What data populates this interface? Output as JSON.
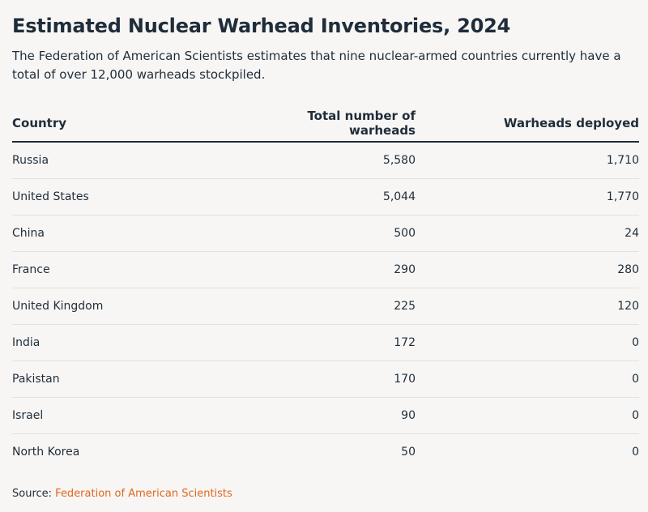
{
  "chart_data": {
    "type": "table",
    "title": "Estimated Nuclear Warhead Inventories, 2024",
    "subtitle": "The Federation of American Scientists estimates that nine nuclear-armed countries currently have a total of over 12,000 warheads stockpiled.",
    "columns": [
      "Country",
      "Total number of warheads",
      "Warheads deployed"
    ],
    "rows": [
      [
        "Russia",
        "5,580",
        "1,710"
      ],
      [
        "United States",
        "5,044",
        "1,770"
      ],
      [
        "China",
        "500",
        "24"
      ],
      [
        "France",
        "290",
        "280"
      ],
      [
        "United Kingdom",
        "225",
        "120"
      ],
      [
        "India",
        "172",
        "0"
      ],
      [
        "Pakistan",
        "170",
        "0"
      ],
      [
        "Israel",
        "90",
        "0"
      ],
      [
        "North Korea",
        "50",
        "0"
      ]
    ]
  },
  "source": {
    "label": "Source:",
    "link_text": "Federation of American Scientists"
  },
  "colors": {
    "text": "#1f2d3a",
    "accent": "#e2661f",
    "background": "#f7f6f4",
    "row_divider": "#e3e1de"
  }
}
